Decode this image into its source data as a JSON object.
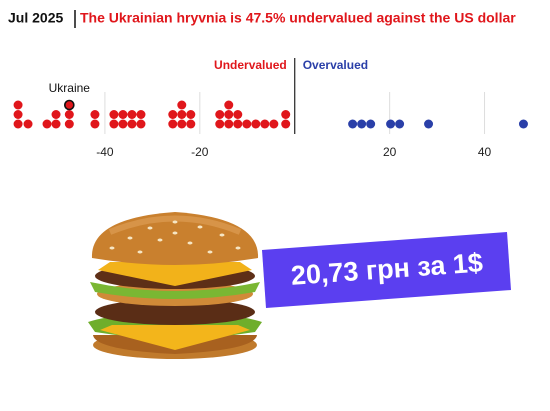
{
  "chart_data": {
    "type": "dotplot",
    "date": "Jul 2025",
    "title": "The Ukrainian hryvnia is 47.5% undervalued against the US dollar",
    "series": [
      {
        "name": "Undervalued",
        "color": "#e0161b",
        "values": [
          -58.3,
          -58.3,
          -58.3,
          -56.2,
          -52.2,
          -50.3,
          -50.3,
          -47.5,
          -47.5,
          -47.5,
          -42.1,
          -42.1,
          -38.1,
          -38.1,
          -36.2,
          -36.2,
          -34.3,
          -34.3,
          -32.4,
          -32.4,
          -25.7,
          -25.7,
          -23.8,
          -23.8,
          -23.8,
          -21.9,
          -21.9,
          -15.8,
          -15.8,
          -13.9,
          -13.9,
          -13.9,
          -12.0,
          -12.0,
          -10.1,
          -8.2,
          -6.3,
          -4.4,
          -1.9,
          -1.9
        ]
      },
      {
        "name": "Overvalued",
        "color": "#2a3fa8",
        "values": [
          12.2,
          14.1,
          16.0,
          20.2,
          22.1,
          28.2,
          48.2
        ]
      }
    ],
    "annotations": [
      {
        "text": "Ukraine",
        "x": -47.5
      }
    ],
    "xlim": [
      -60,
      50
    ],
    "xticks": [
      -40,
      -20,
      20,
      40
    ],
    "grid": true
  },
  "banner": {
    "text": "20,73 грн за 1$"
  }
}
